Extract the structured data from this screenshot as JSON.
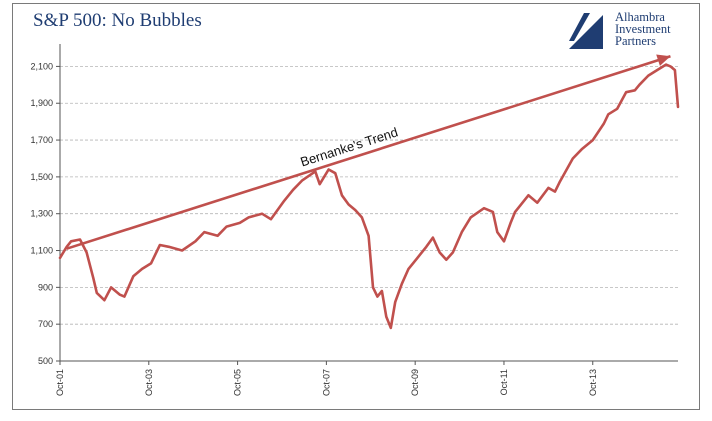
{
  "chart_data": {
    "type": "line",
    "title": "S&P 500: No Bubbles",
    "xlabel": "",
    "ylabel": "",
    "ylim": [
      500,
      2200
    ],
    "y_ticks": [
      500,
      700,
      900,
      1100,
      1300,
      1500,
      1700,
      1900,
      2100
    ],
    "y_tick_labels": [
      "500",
      "700",
      "900",
      "1,100",
      "1,300",
      "1,500",
      "1,700",
      "1,900",
      "2,100"
    ],
    "x_range": [
      2001.75,
      2015.67
    ],
    "x_ticks": [
      2001.75,
      2003.75,
      2005.75,
      2007.75,
      2009.75,
      2011.75,
      2013.75
    ],
    "x_tick_labels": [
      "Oct-01",
      "Oct-03",
      "Oct-05",
      "Oct-07",
      "Oct-09",
      "Oct-11",
      "Oct-13"
    ],
    "grid": true,
    "line_color": "#c0504d",
    "series": [
      {
        "x": [
          2001.75,
          2001.9,
          2002.0,
          2002.2,
          2002.35,
          2002.5,
          2002.58,
          2002.75,
          2002.9,
          2003.1,
          2003.2,
          2003.4,
          2003.6,
          2003.8,
          2004.0,
          2004.2,
          2004.5,
          2004.8,
          2005.0,
          2005.3,
          2005.5,
          2005.8,
          2006.0,
          2006.3,
          2006.5,
          2006.8,
          2007.0,
          2007.2,
          2007.5,
          2007.6,
          2007.8,
          2007.95,
          2008.1,
          2008.25,
          2008.4,
          2008.55,
          2008.7,
          2008.8,
          2008.9,
          2009.0,
          2009.1,
          2009.2,
          2009.3,
          2009.45,
          2009.6,
          2009.8,
          2010.0,
          2010.15,
          2010.3,
          2010.45,
          2010.6,
          2010.8,
          2011.0,
          2011.3,
          2011.5,
          2011.6,
          2011.75,
          2011.9,
          2012.0,
          2012.3,
          2012.5,
          2012.75,
          2012.9,
          2013.0,
          2013.3,
          2013.5,
          2013.75,
          2014.0,
          2014.1,
          2014.3,
          2014.5,
          2014.7,
          2014.8,
          2015.0,
          2015.2,
          2015.4,
          2015.5,
          2015.6,
          2015.67
        ],
        "values": [
          1060,
          1120,
          1150,
          1160,
          1090,
          950,
          870,
          830,
          900,
          860,
          850,
          960,
          1000,
          1030,
          1130,
          1120,
          1100,
          1150,
          1200,
          1180,
          1230,
          1250,
          1280,
          1300,
          1270,
          1370,
          1430,
          1480,
          1530,
          1460,
          1540,
          1520,
          1400,
          1350,
          1320,
          1280,
          1180,
          900,
          850,
          880,
          740,
          680,
          820,
          920,
          1000,
          1060,
          1120,
          1170,
          1090,
          1050,
          1090,
          1200,
          1280,
          1330,
          1310,
          1200,
          1150,
          1250,
          1310,
          1400,
          1360,
          1440,
          1420,
          1470,
          1600,
          1650,
          1700,
          1790,
          1840,
          1870,
          1960,
          1970,
          2000,
          2050,
          2080,
          2110,
          2100,
          2080,
          1880
        ]
      }
    ],
    "trend_line": {
      "label": "Bernanke's Trend",
      "x": [
        2001.9,
        2015.5
      ],
      "y": [
        1110,
        2155
      ],
      "color": "#c0504d"
    }
  },
  "logo": {
    "lines": [
      "Alhambra",
      "Investment",
      "Partners"
    ]
  }
}
